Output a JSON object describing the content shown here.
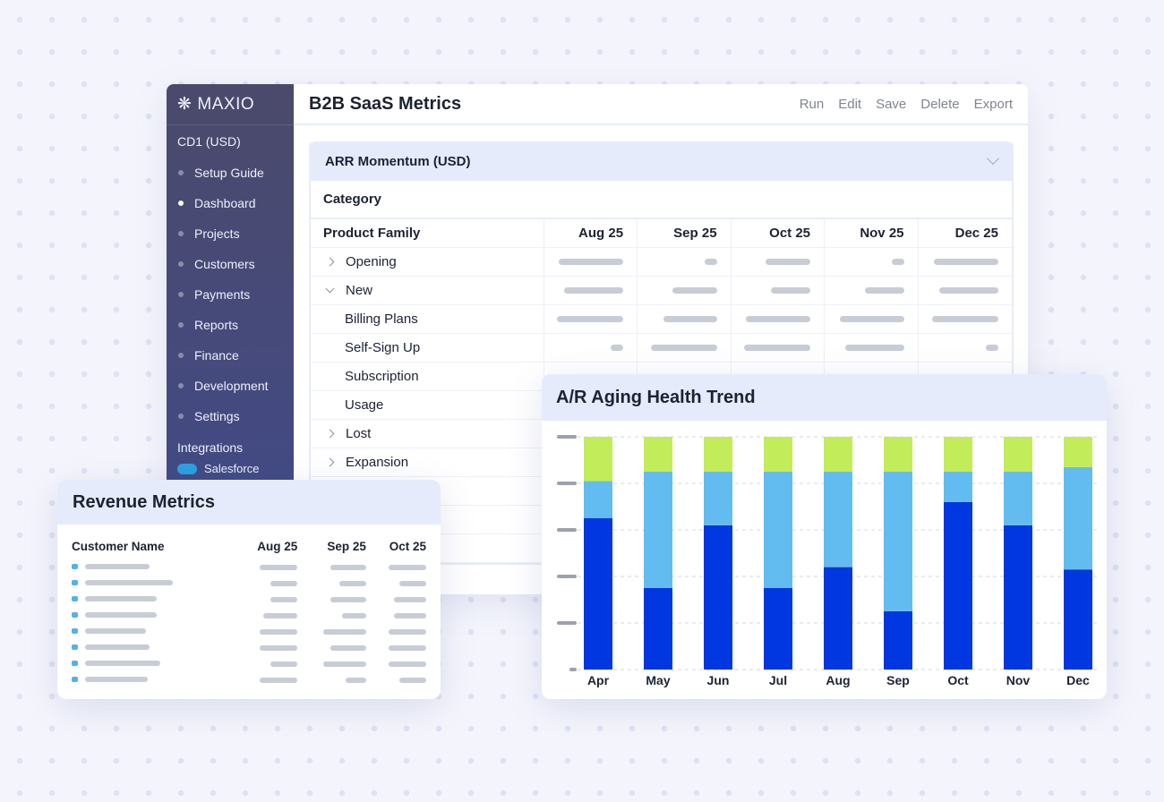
{
  "sidebar": {
    "logo": "MAXIO",
    "org": "CD1 (USD)",
    "items": [
      {
        "label": "Setup Guide",
        "active": false
      },
      {
        "label": "Dashboard",
        "active": true
      },
      {
        "label": "Projects",
        "active": false
      },
      {
        "label": "Customers",
        "active": false
      },
      {
        "label": "Payments",
        "active": false
      },
      {
        "label": "Reports",
        "active": false
      },
      {
        "label": "Finance",
        "active": false
      },
      {
        "label": "Development",
        "active": false
      },
      {
        "label": "Settings",
        "active": false
      }
    ],
    "integrations_label": "Integrations",
    "integration": "Salesforce"
  },
  "header": {
    "title": "B2B SaaS Metrics",
    "actions": [
      "Run",
      "Edit",
      "Save",
      "Delete",
      "Export"
    ]
  },
  "arr": {
    "title": "ARR Momentum (USD)",
    "category": "Category",
    "columns": [
      "Product Family",
      "Aug 25",
      "Sep 25",
      "Oct 25",
      "Nov 25",
      "Dec 25"
    ],
    "rows": [
      {
        "label": "Opening",
        "expand": "collapsed"
      },
      {
        "label": "New",
        "expand": "expanded"
      },
      {
        "label": "Billing Plans",
        "child": true
      },
      {
        "label": "Self-Sign Up",
        "child": true
      },
      {
        "label": "Subscription",
        "child": true
      },
      {
        "label": "Usage",
        "child": true
      },
      {
        "label": "Lost",
        "expand": "collapsed"
      },
      {
        "label": "Expansion",
        "expand": "collapsed"
      }
    ]
  },
  "revenue": {
    "title": "Revenue Metrics",
    "columns": [
      "Customer Name",
      "Aug 25",
      "Sep 25",
      "Oct 25"
    ]
  },
  "chart_data": {
    "type": "bar",
    "stacked": true,
    "title": "A/R Aging Health Trend",
    "categories": [
      "Apr",
      "May",
      "Jun",
      "Jul",
      "Aug",
      "Sep",
      "Oct",
      "Nov",
      "Dec"
    ],
    "ylim": [
      0,
      100
    ],
    "y_tick_labels": "hidden",
    "grid": true,
    "series": [
      {
        "color": "#0037e0",
        "values": [
          65,
          35,
          62,
          35,
          44,
          25,
          72,
          62,
          43
        ]
      },
      {
        "color": "#63bcf0",
        "values": [
          16,
          50,
          23,
          50,
          41,
          60,
          13,
          23,
          44
        ]
      },
      {
        "color": "#c3ec5a",
        "values": [
          19,
          15,
          15,
          15,
          15,
          15,
          15,
          15,
          13
        ]
      }
    ]
  }
}
